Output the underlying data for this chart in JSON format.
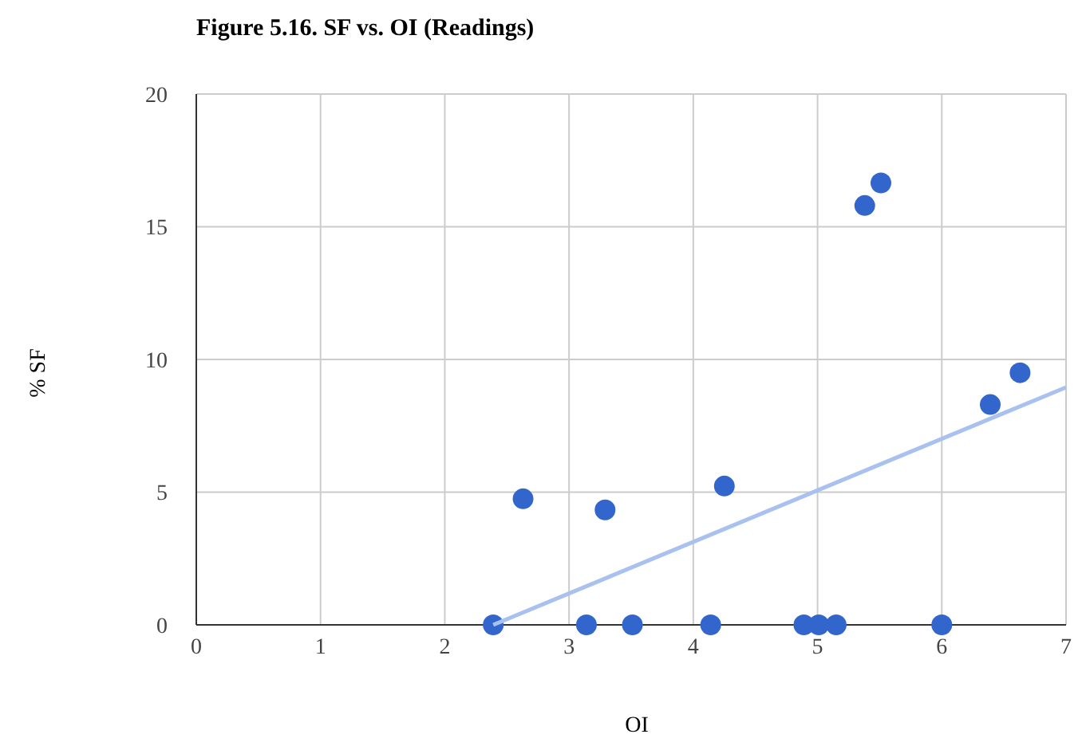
{
  "chart_data": {
    "type": "scatter",
    "title": "Figure 5.16. SF vs. OI (Readings)",
    "xlabel": "OI",
    "ylabel": "% SF",
    "xlim": [
      0,
      7
    ],
    "xticks": [
      0,
      1,
      2,
      3,
      4,
      5,
      6,
      7
    ],
    "ylim": [
      0,
      20
    ],
    "yticks": [
      0,
      5,
      10,
      15,
      20
    ],
    "grid": true,
    "series": [
      {
        "marker": "circle",
        "color": "#3366cc",
        "x": [
          2.39,
          2.63,
          3.14,
          3.29,
          3.51,
          4.14,
          4.25,
          4.89,
          5.01,
          5.15,
          5.38,
          5.51,
          6.0,
          6.39,
          6.63
        ],
        "values": [
          0,
          4.75,
          0,
          4.33,
          0,
          0,
          5.23,
          0,
          0,
          0,
          15.8,
          16.65,
          0,
          8.3,
          9.5
        ]
      },
      {
        "type": "line",
        "marker": "none",
        "color": "#a9c1ee",
        "x": [
          2.39,
          7
        ],
        "values": [
          0,
          8.95
        ]
      }
    ]
  }
}
